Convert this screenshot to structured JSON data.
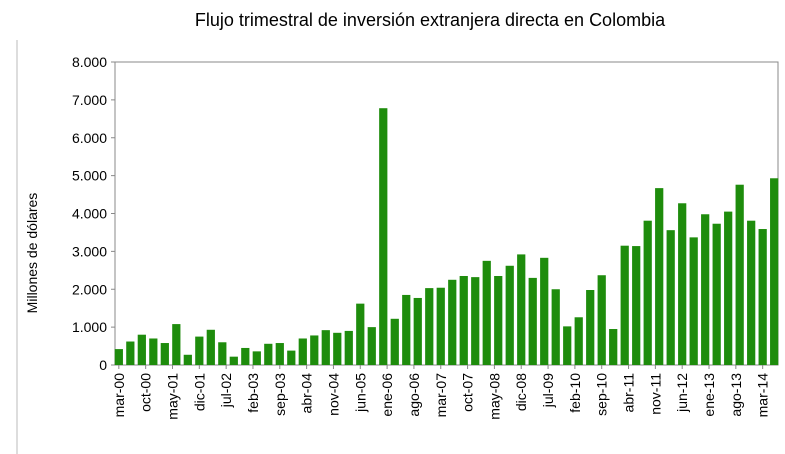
{
  "chart_data": {
    "type": "bar",
    "title": "Flujo trimestral de inversión extranjera directa en Colombia",
    "y_label": "Millones de dólares",
    "color": "#1e8c0c",
    "x": [
      "2000-03",
      "2000-06",
      "2000-09",
      "2000-12",
      "2001-03",
      "2001-06",
      "2001-09",
      "2001-12",
      "2002-03",
      "2002-06",
      "2002-09",
      "2002-12",
      "2003-03",
      "2003-06",
      "2003-09",
      "2003-12",
      "2004-03",
      "2004-06",
      "2004-09",
      "2004-12",
      "2005-03",
      "2005-06",
      "2005-09",
      "2005-12",
      "2006-03",
      "2006-06",
      "2006-09",
      "2006-12",
      "2007-03",
      "2007-06",
      "2007-09",
      "2007-12",
      "2008-03",
      "2008-06",
      "2008-09",
      "2008-12",
      "2009-03",
      "2009-06",
      "2009-09",
      "2009-12",
      "2010-03",
      "2010-06",
      "2010-09",
      "2010-12",
      "2011-03",
      "2011-06",
      "2011-09",
      "2011-12",
      "2012-03",
      "2012-06",
      "2012-09",
      "2012-12",
      "2013-03",
      "2013-06",
      "2013-09",
      "2013-12",
      "2014-03",
      "2014-06"
    ],
    "values": [
      420,
      620,
      800,
      700,
      580,
      1080,
      270,
      750,
      930,
      600,
      220,
      450,
      360,
      560,
      580,
      380,
      700,
      780,
      920,
      850,
      900,
      1620,
      1000,
      6780,
      1220,
      1850,
      1770,
      2030,
      2040,
      2250,
      2350,
      2320,
      2750,
      2350,
      2620,
      2920,
      2300,
      2830,
      2000,
      1020,
      1260,
      1980,
      2370,
      950,
      3150,
      3140,
      3810,
      4670,
      3560,
      4270,
      3370,
      3980,
      3730,
      4050,
      4760,
      3810,
      3590,
      4930
    ],
    "xlim": [
      "2000-02",
      "2014-07"
    ],
    "xticks": [
      {
        "value": "2000-03",
        "label": "mar-00"
      },
      {
        "value": "2000-10",
        "label": "oct-00"
      },
      {
        "value": "2001-05",
        "label": "may-01"
      },
      {
        "value": "2001-12",
        "label": "dic-01"
      },
      {
        "value": "2002-07",
        "label": "jul-02"
      },
      {
        "value": "2003-02",
        "label": "feb-03"
      },
      {
        "value": "2003-09",
        "label": "sep-03"
      },
      {
        "value": "2004-04",
        "label": "abr-04"
      },
      {
        "value": "2004-11",
        "label": "nov-04"
      },
      {
        "value": "2005-06",
        "label": "jun-05"
      },
      {
        "value": "2006-01",
        "label": "ene-06"
      },
      {
        "value": "2006-08",
        "label": "ago-06"
      },
      {
        "value": "2007-03",
        "label": "mar-07"
      },
      {
        "value": "2007-10",
        "label": "oct-07"
      },
      {
        "value": "2008-05",
        "label": "may-08"
      },
      {
        "value": "2008-12",
        "label": "dic-08"
      },
      {
        "value": "2009-07",
        "label": "jul-09"
      },
      {
        "value": "2010-02",
        "label": "feb-10"
      },
      {
        "value": "2010-09",
        "label": "sep-10"
      },
      {
        "value": "2011-04",
        "label": "abr-11"
      },
      {
        "value": "2011-11",
        "label": "nov-11"
      },
      {
        "value": "2012-06",
        "label": "jun-12"
      },
      {
        "value": "2013-01",
        "label": "ene-13"
      },
      {
        "value": "2013-08",
        "label": "ago-13"
      },
      {
        "value": "2014-03",
        "label": "mar-14"
      }
    ],
    "ylim": [
      0,
      8000
    ],
    "yticks": [
      0,
      {
        "value": 1000,
        "label": "1.000"
      },
      {
        "value": 2000,
        "label": "2.000"
      },
      {
        "value": 3000,
        "label": "3.000"
      },
      {
        "value": 4000,
        "label": "4.000"
      },
      {
        "value": 5000,
        "label": "5.000"
      },
      {
        "value": 6000,
        "label": "6.000"
      },
      {
        "value": 7000,
        "label": "7.000"
      },
      {
        "value": 8000,
        "label": "8.000"
      }
    ],
    "grid": false
  }
}
